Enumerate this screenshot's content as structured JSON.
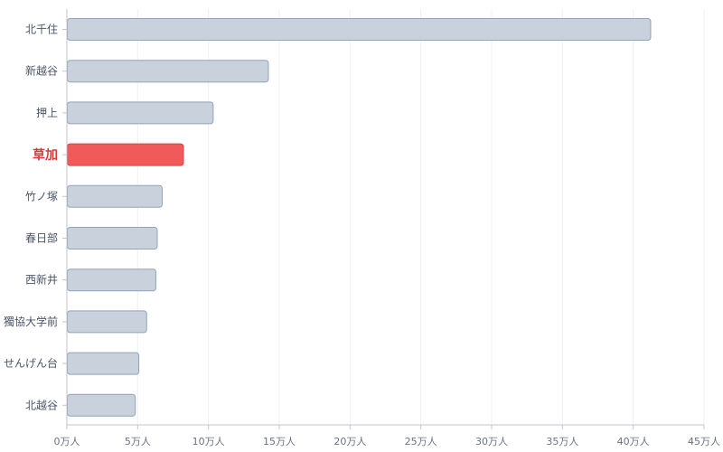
{
  "chart_data": {
    "type": "bar",
    "orientation": "horizontal",
    "title": "",
    "xlabel": "",
    "ylabel": "",
    "categories": [
      "北千住",
      "新越谷",
      "押上",
      "草加",
      "竹ノ塚",
      "春日部",
      "西新井",
      "獨協大学前",
      "せんげん台",
      "北越谷"
    ],
    "values": [
      412000,
      142000,
      103000,
      82000,
      67000,
      63500,
      62500,
      56000,
      50500,
      48000
    ],
    "highlight": "草加",
    "xlim": [
      0,
      450000
    ],
    "ticks": [
      {
        "value": 0,
        "label": "0万人"
      },
      {
        "value": 50000,
        "label": "5万人"
      },
      {
        "value": 100000,
        "label": "10万人"
      },
      {
        "value": 150000,
        "label": "15万人"
      },
      {
        "value": 200000,
        "label": "20万人"
      },
      {
        "value": 250000,
        "label": "25万人"
      },
      {
        "value": 300000,
        "label": "30万人"
      },
      {
        "value": 350000,
        "label": "35万人"
      },
      {
        "value": 400000,
        "label": "40万人"
      },
      {
        "value": 450000,
        "label": "45万人"
      }
    ],
    "grid": true,
    "legend": "none",
    "colors": {
      "bar": "#c9d1dc",
      "bar_border": "#93a3b8",
      "highlight_bar": "#f05a5b",
      "highlight_border": "#d94444",
      "highlight_label": "#d23b3b",
      "grid": "#eef1f5",
      "axis": "#c0c6cf",
      "text": "#4a5566"
    }
  }
}
